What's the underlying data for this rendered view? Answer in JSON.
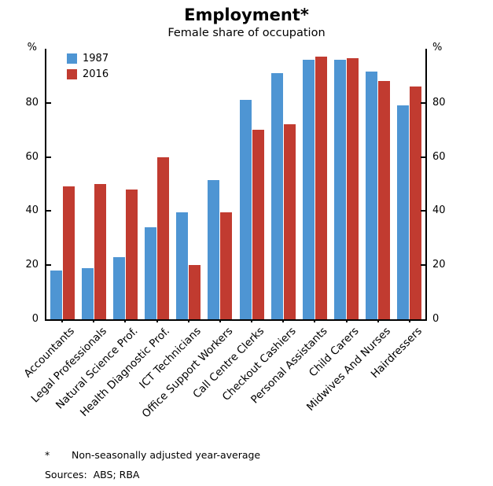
{
  "chart_data": {
    "type": "bar",
    "title": "Employment*",
    "subtitle": "Female share of occupation",
    "unit_left": "%",
    "unit_right": "%",
    "ylim": [
      0,
      100
    ],
    "yticks": [
      0,
      20,
      40,
      60,
      80
    ],
    "grid": false,
    "legend_position": "top-left",
    "categories": [
      "Accountants",
      "Legal Professionals",
      "Natural Science Prof.",
      "Health Diagnostic Prof.",
      "ICT Technicians",
      "Office Support Workers",
      "Call Centre Clerks",
      "Checkout Cashiers",
      "Personal Assistants",
      "Child Carers",
      "Midwives And Nurses",
      "Hairdressers"
    ],
    "series": [
      {
        "name": "1987",
        "color": "#4e95d3",
        "values": [
          18,
          19,
          23,
          34,
          39.5,
          51.5,
          81,
          91,
          96,
          96,
          91.5,
          79
        ]
      },
      {
        "name": "2016",
        "color": "#c13b30",
        "values": [
          49,
          50,
          48,
          60,
          20,
          39.5,
          70,
          72,
          97,
          96.5,
          88,
          86
        ]
      }
    ]
  },
  "footnote": {
    "marker": "*",
    "text": "Non-seasonally adjusted year-average"
  },
  "sources_label": "Sources:  ABS; RBA"
}
